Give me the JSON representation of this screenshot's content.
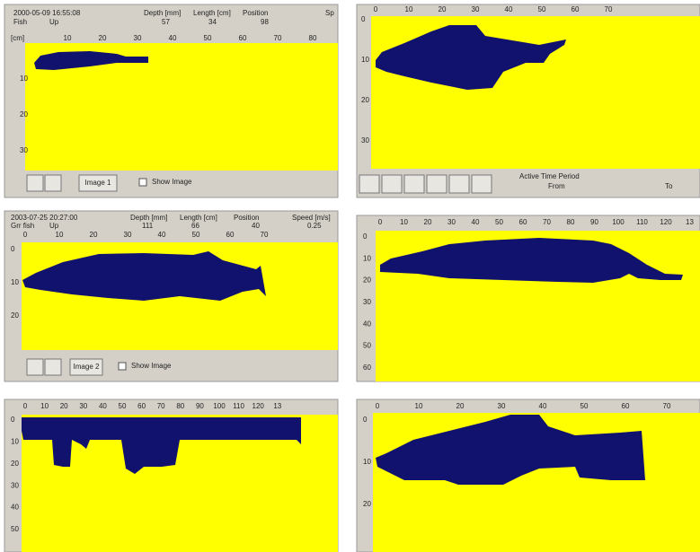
{
  "panels": [
    {
      "header": [
        [
          "2000-05-09 16:55:08",
          "Depth [mm]",
          "Length [cm]",
          "Position",
          "Sp"
        ],
        [
          "Fish",
          "Up",
          "57",
          "34",
          "98"
        ]
      ],
      "unit": "[cm]",
      "x_ticks": [
        "10",
        "20",
        "30",
        "40",
        "50",
        "60",
        "70",
        "80"
      ],
      "y_ticks": [
        "10",
        "20",
        "30"
      ],
      "buttons": [
        "Image 1"
      ],
      "checkbox": "Show Image"
    },
    {
      "x_ticks": [
        "0",
        "10",
        "20",
        "30",
        "40",
        "50",
        "60",
        "70"
      ],
      "y_ticks": [
        "0",
        "10",
        "20",
        "30"
      ],
      "toolbar": {
        "title": "Active Time Period",
        "from": "From",
        "to": "To"
      }
    },
    {
      "header": [
        [
          "2003-07-25 20:27:00",
          "Depth [mm]",
          "Length [cm]",
          "Position",
          "Speed [m/s]"
        ],
        [
          "Grr fish",
          "Up",
          "111",
          "66",
          "40",
          "0.25"
        ]
      ],
      "x_ticks": [
        "0",
        "10",
        "20",
        "30",
        "40",
        "50",
        "60",
        "70"
      ],
      "y_ticks": [
        "0",
        "10",
        "20"
      ],
      "buttons": [
        "Image 2"
      ],
      "checkbox": "Show Image"
    },
    {
      "x_ticks": [
        "0",
        "10",
        "20",
        "30",
        "40",
        "50",
        "60",
        "70",
        "80",
        "90",
        "100",
        "110",
        "120",
        "13"
      ],
      "y_ticks": [
        "0",
        "10",
        "20",
        "30",
        "40",
        "50",
        "60"
      ]
    },
    {
      "x_ticks": [
        "0",
        "10",
        "20",
        "30",
        "40",
        "50",
        "60",
        "70",
        "80",
        "90",
        "100",
        "110",
        "120",
        "13"
      ],
      "y_ticks": [
        "0",
        "10",
        "20",
        "30",
        "40",
        "50"
      ]
    },
    {
      "x_ticks": [
        "0",
        "10",
        "20",
        "30",
        "40",
        "50",
        "60",
        "70"
      ],
      "y_ticks": [
        "0",
        "10",
        "20"
      ]
    }
  ]
}
